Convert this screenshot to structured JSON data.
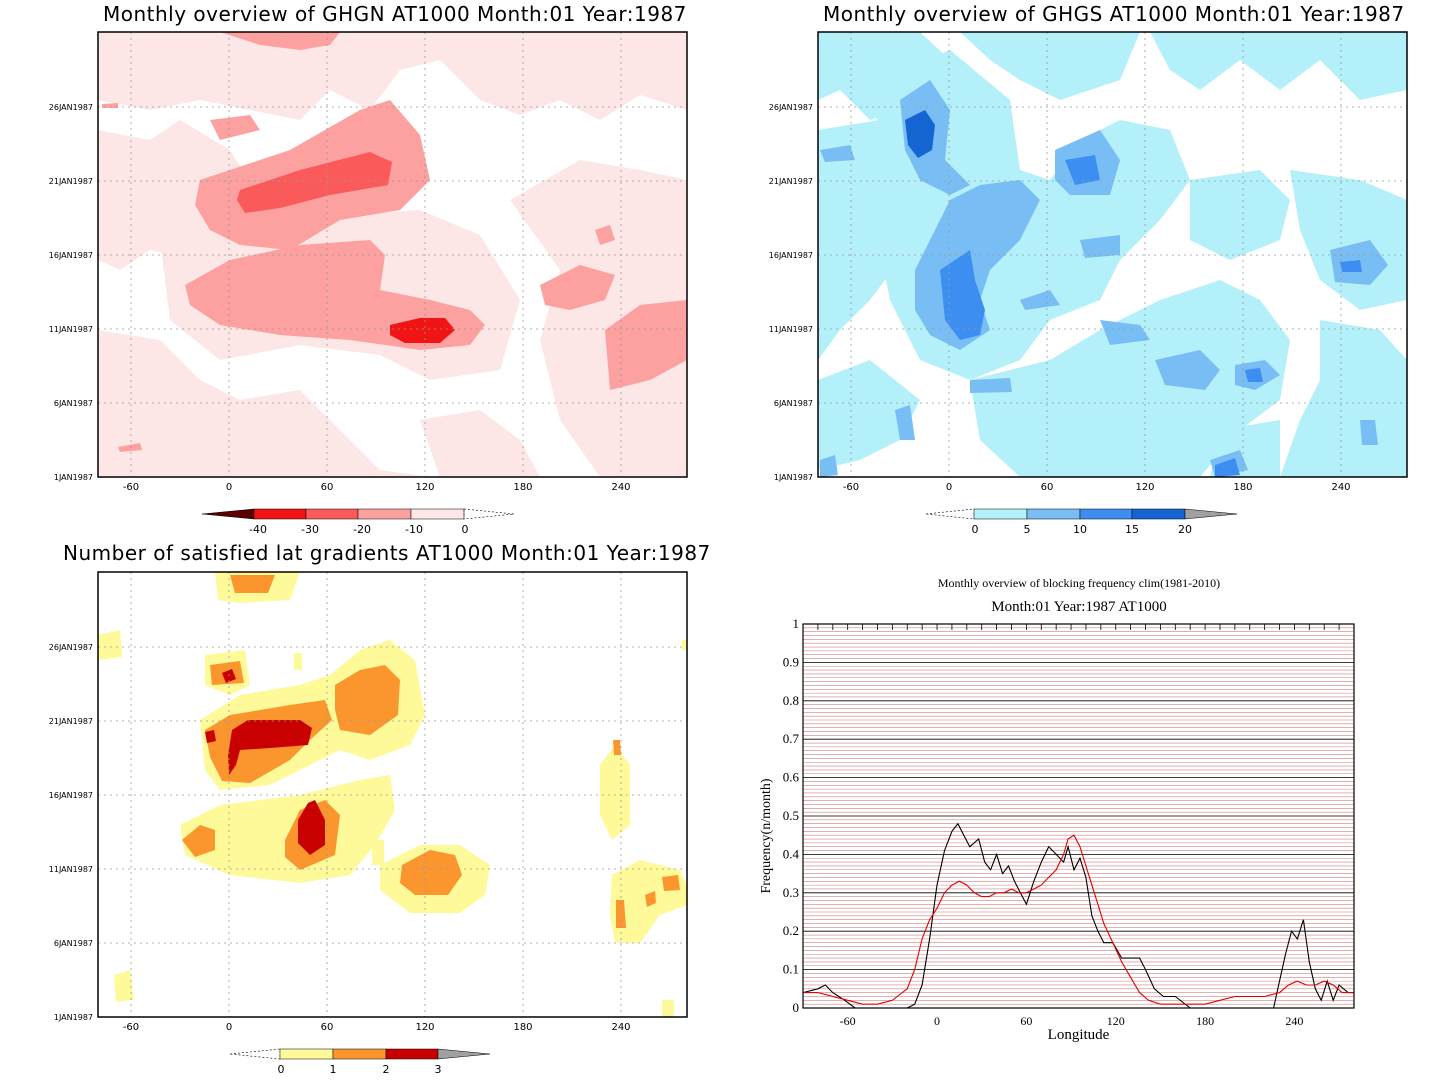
{
  "panels": {
    "ghgn": {
      "title": "Monthly overview of GHGN AT1000 Month:01 Year:1987",
      "colorbar_labels": [
        "-40",
        "-30",
        "-20",
        "-10",
        "0"
      ],
      "colors": [
        "#5a0000",
        "#f01414",
        "#fa5a5a",
        "#fca0a0",
        "#fde6e6"
      ]
    },
    "ghgs": {
      "title": "Monthly overview of GHGS AT1000 Month:01 Year:1987",
      "colorbar_labels": [
        "0",
        "5",
        "10",
        "15",
        "20"
      ],
      "colors": [
        "#b4f0fa",
        "#78bef5",
        "#3c8ff0",
        "#1464d2",
        "#a0a0a0"
      ]
    },
    "lat": {
      "title": "Number of satisfied lat gradients AT1000 Month:01 Year:1987",
      "colorbar_labels": [
        "0",
        "1",
        "2",
        "3"
      ],
      "colors": [
        "#fefa9a",
        "#fa962d",
        "#c80000",
        "#a0a0a0"
      ]
    }
  },
  "map_axes": {
    "x_ticks": [
      "-60",
      "0",
      "60",
      "120",
      "180",
      "240"
    ],
    "y_ticks": [
      "1JAN1987",
      "6JAN1987",
      "11JAN1987",
      "16JAN1987",
      "21JAN1987",
      "26JAN1987"
    ]
  },
  "chart_data": {
    "type": "line",
    "title": "Monthly overview of blocking frequency clim(1981-2010)",
    "subtitle": "Month:01 Year:1987  AT1000",
    "xlabel": "Longitude",
    "ylabel": "Frequency(n/month)",
    "xlim": [
      -90,
      280
    ],
    "ylim": [
      0,
      1
    ],
    "x_ticks": [
      -60,
      0,
      60,
      120,
      180,
      240
    ],
    "y_ticks": [
      0,
      0.1,
      0.2,
      0.3,
      0.4,
      0.5,
      0.6,
      0.7,
      0.8,
      0.9,
      1
    ],
    "grid": true,
    "series": [
      {
        "color": "#000000",
        "x": [
          -90,
          -80,
          -75,
          -70,
          -62,
          -55,
          -48,
          -40,
          -30,
          -20,
          -15,
          -10,
          -5,
          0,
          5,
          10,
          14,
          18,
          22,
          28,
          32,
          36,
          40,
          44,
          48,
          52,
          56,
          60,
          65,
          70,
          75,
          80,
          85,
          88,
          92,
          96,
          100,
          104,
          108,
          112,
          118,
          124,
          130,
          136,
          140,
          146,
          152,
          160,
          170,
          180,
          190,
          200,
          210,
          220,
          226,
          230,
          234,
          238,
          242,
          246,
          250,
          254,
          258,
          262,
          266,
          270,
          276,
          280
        ],
        "y": [
          0.04,
          0.05,
          0.06,
          0.04,
          0.02,
          0.0,
          0.0,
          0.0,
          0.0,
          0.0,
          0.01,
          0.06,
          0.18,
          0.32,
          0.41,
          0.46,
          0.48,
          0.45,
          0.42,
          0.44,
          0.38,
          0.36,
          0.4,
          0.35,
          0.37,
          0.33,
          0.3,
          0.27,
          0.33,
          0.38,
          0.42,
          0.4,
          0.38,
          0.42,
          0.36,
          0.39,
          0.34,
          0.24,
          0.2,
          0.17,
          0.17,
          0.13,
          0.13,
          0.13,
          0.1,
          0.05,
          0.03,
          0.03,
          0.0,
          0.0,
          0.0,
          0.0,
          0.0,
          0.0,
          0.0,
          0.07,
          0.14,
          0.2,
          0.18,
          0.23,
          0.12,
          0.05,
          0.02,
          0.07,
          0.02,
          0.06,
          0.04,
          0.04
        ]
      },
      {
        "color": "#e00000",
        "x": [
          -90,
          -80,
          -70,
          -60,
          -50,
          -40,
          -30,
          -20,
          -15,
          -10,
          -5,
          0,
          5,
          10,
          15,
          20,
          25,
          30,
          35,
          40,
          45,
          50,
          55,
          60,
          65,
          70,
          75,
          80,
          85,
          88,
          92,
          96,
          100,
          104,
          108,
          112,
          118,
          124,
          130,
          136,
          142,
          150,
          160,
          170,
          180,
          190,
          200,
          210,
          220,
          230,
          236,
          242,
          248,
          254,
          260,
          266,
          272,
          280
        ],
        "y": [
          0.04,
          0.04,
          0.03,
          0.02,
          0.01,
          0.01,
          0.02,
          0.05,
          0.1,
          0.18,
          0.23,
          0.26,
          0.3,
          0.32,
          0.33,
          0.32,
          0.3,
          0.29,
          0.29,
          0.3,
          0.3,
          0.31,
          0.3,
          0.3,
          0.31,
          0.32,
          0.34,
          0.36,
          0.4,
          0.44,
          0.45,
          0.42,
          0.37,
          0.32,
          0.27,
          0.22,
          0.17,
          0.12,
          0.08,
          0.04,
          0.02,
          0.01,
          0.01,
          0.01,
          0.01,
          0.02,
          0.03,
          0.03,
          0.03,
          0.04,
          0.06,
          0.07,
          0.06,
          0.06,
          0.07,
          0.06,
          0.04,
          0.04
        ]
      }
    ]
  }
}
